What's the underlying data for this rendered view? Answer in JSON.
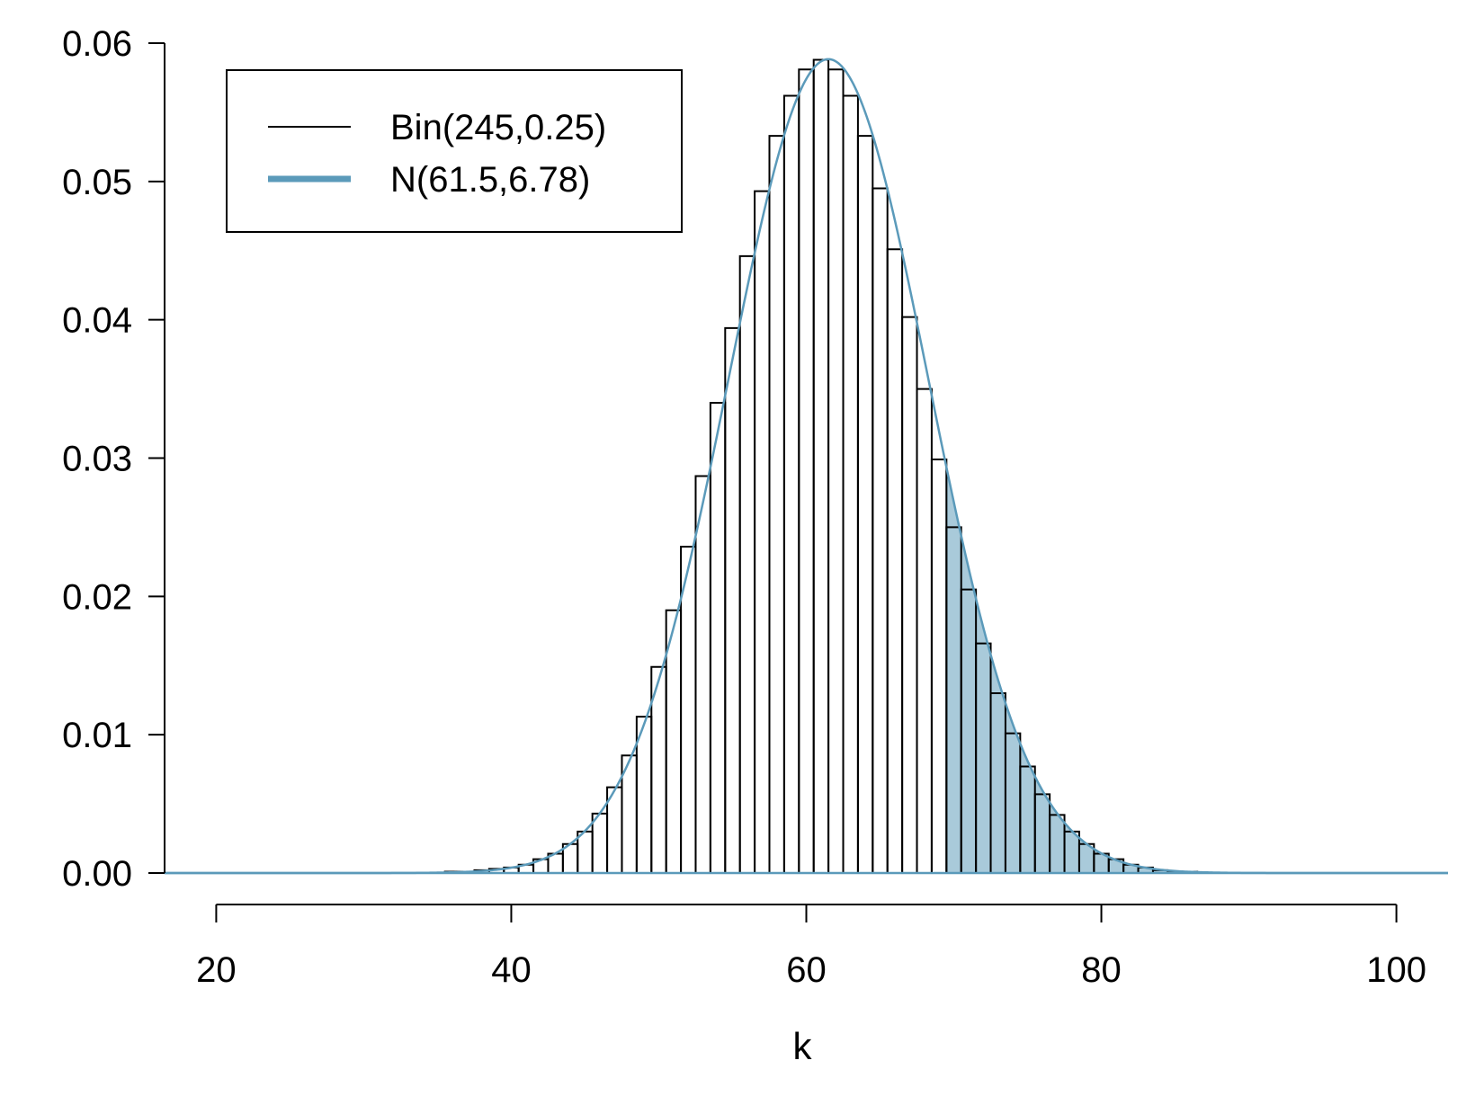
{
  "chart_data": {
    "type": "line",
    "title": "",
    "xlabel": "k",
    "ylabel": "",
    "xlim": [
      16.5,
      103.5
    ],
    "ylim": [
      0,
      0.06
    ],
    "x_axis_range": [
      20,
      100
    ],
    "xticks": [
      20,
      40,
      60,
      80,
      100
    ],
    "xtick_labels": [
      "20",
      "40",
      "60",
      "80",
      "100"
    ],
    "yticks": [
      0,
      0.01,
      0.02,
      0.03,
      0.04,
      0.05,
      0.06
    ],
    "ytick_labels": [
      "0.00",
      "0.01",
      "0.02",
      "0.03",
      "0.04",
      "0.05",
      "0.06"
    ],
    "grid": false,
    "legend_position": "top-left",
    "series": [
      {
        "name": "Bin(245,0.25)",
        "kind": "step-histogram",
        "color": "#000000",
        "x": [
          30,
          31,
          32,
          33,
          34,
          35,
          36,
          37,
          38,
          39,
          40,
          41,
          42,
          43,
          44,
          45,
          46,
          47,
          48,
          49,
          50,
          51,
          52,
          53,
          54,
          55,
          56,
          57,
          58,
          59,
          60,
          61,
          62,
          63,
          64,
          65,
          66,
          67,
          68,
          69,
          70,
          71,
          72,
          73,
          74,
          75,
          76,
          77,
          78,
          79,
          80,
          81,
          82,
          83,
          84,
          85,
          86,
          87,
          88,
          89,
          90
        ],
        "values": [
          0.0,
          0.0,
          0.0,
          0.0,
          0.0,
          0.0,
          0.0001,
          0.0001,
          0.0002,
          0.0003,
          0.0004,
          0.0006,
          0.001,
          0.0014,
          0.0021,
          0.003,
          0.0043,
          0.0062,
          0.0085,
          0.0113,
          0.0149,
          0.019,
          0.0236,
          0.0287,
          0.034,
          0.0394,
          0.0446,
          0.0493,
          0.0533,
          0.0562,
          0.0581,
          0.0588,
          0.0581,
          0.0562,
          0.0533,
          0.0495,
          0.0451,
          0.0402,
          0.035,
          0.0299,
          0.025,
          0.0205,
          0.0166,
          0.013,
          0.0101,
          0.0077,
          0.0057,
          0.0042,
          0.003,
          0.0021,
          0.0014,
          0.001,
          0.0006,
          0.0004,
          0.0002,
          0.0001,
          0.0001,
          0.0,
          0.0,
          0.0,
          0.0
        ]
      },
      {
        "name": "N(61.5,6.78)",
        "kind": "normal-density",
        "color": "#5B9ABA",
        "mean": 61.5,
        "sd": 6.78,
        "shaded_from": 69.5,
        "shade_color": "#A9CADA"
      }
    ]
  }
}
